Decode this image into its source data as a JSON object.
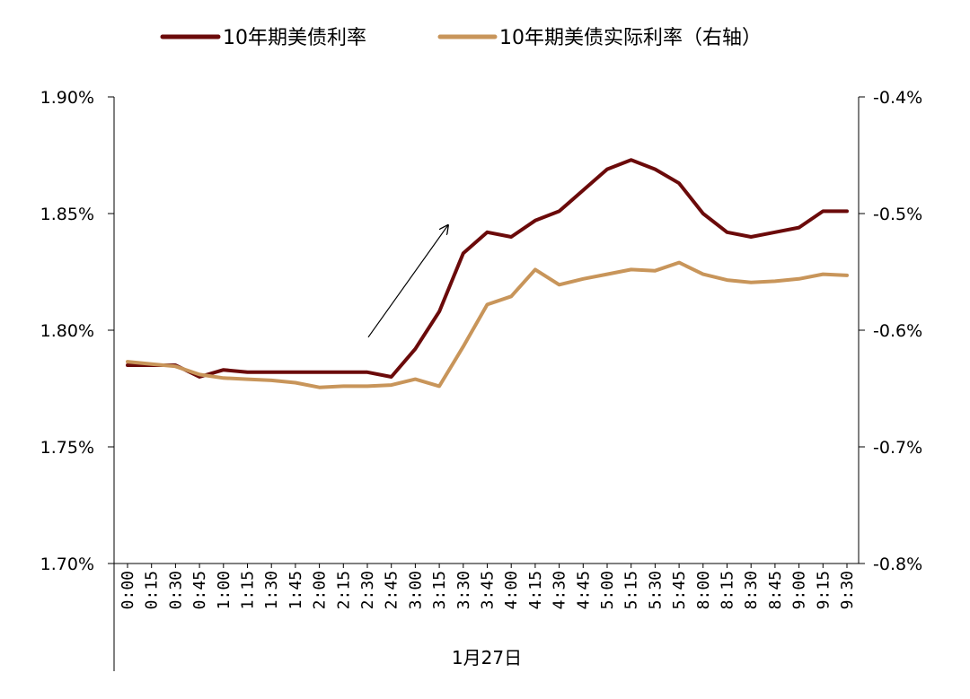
{
  "chart_data": {
    "type": "line",
    "xlabel": "1月27日",
    "categories": [
      "0:00",
      "0:15",
      "0:30",
      "0:45",
      "1:00",
      "1:15",
      "1:30",
      "1:45",
      "2:00",
      "2:15",
      "2:30",
      "2:45",
      "3:00",
      "3:15",
      "3:30",
      "3:45",
      "4:00",
      "4:15",
      "4:30",
      "4:45",
      "5:00",
      "5:15",
      "5:30",
      "5:45",
      "8:00",
      "8:15",
      "8:30",
      "8:45",
      "9:00",
      "9:15",
      "9:30"
    ],
    "y_left": {
      "ylim": [
        1.7,
        1.9
      ],
      "ticks": [
        1.7,
        1.75,
        1.8,
        1.85,
        1.9
      ],
      "tick_labels": [
        "1.70%",
        "1.75%",
        "1.80%",
        "1.85%",
        "1.90%"
      ]
    },
    "y_right": {
      "ylim": [
        -0.8,
        -0.4
      ],
      "ticks": [
        -0.8,
        -0.7,
        -0.6,
        -0.5,
        -0.4
      ],
      "tick_labels": [
        "-0.8%",
        "-0.7%",
        "-0.6%",
        "-0.5%",
        "-0.4%"
      ]
    },
    "legend_position": "top-center",
    "series": [
      {
        "name": "10年期美债利率",
        "axis": "left",
        "color": "#6B0A0A",
        "values": [
          1.785,
          1.785,
          1.785,
          1.78,
          1.783,
          1.782,
          1.782,
          1.782,
          1.782,
          1.782,
          1.782,
          1.78,
          1.792,
          1.808,
          1.833,
          1.842,
          1.84,
          1.847,
          1.851,
          1.86,
          1.869,
          1.873,
          1.869,
          1.863,
          1.85,
          1.842,
          1.84,
          1.842,
          1.844,
          1.851,
          1.851
        ]
      },
      {
        "name": "10年期美债实际利率（右轴）",
        "axis": "right",
        "color": "#C8955A",
        "values": [
          -0.627,
          -0.629,
          -0.631,
          -0.638,
          -0.641,
          -0.642,
          -0.643,
          -0.645,
          -0.649,
          -0.648,
          -0.648,
          -0.647,
          -0.642,
          -0.648,
          -0.614,
          -0.578,
          -0.571,
          -0.548,
          -0.561,
          -0.556,
          -0.552,
          -0.548,
          -0.549,
          -0.542,
          -0.552,
          -0.557,
          -0.559,
          -0.558,
          -0.556,
          -0.552,
          -0.553
        ]
      }
    ],
    "annotations": [
      {
        "type": "arrow",
        "from": {
          "x": "2:30",
          "y": 1.797
        },
        "to": {
          "x": "3:30",
          "y": 1.845
        }
      }
    ]
  }
}
